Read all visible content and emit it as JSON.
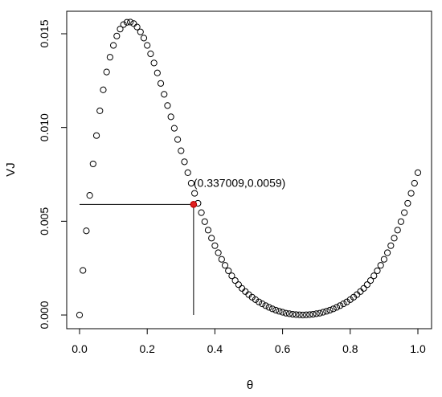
{
  "chart_data": {
    "type": "scatter",
    "title": "",
    "xlabel": "θ",
    "ylabel": "VJ",
    "xlim": [
      0,
      1
    ],
    "ylim": [
      0,
      0.0156
    ],
    "x_ticks": [
      0.0,
      0.2,
      0.4,
      0.6,
      0.8,
      1.0
    ],
    "x_tick_labels": [
      "0.0",
      "0.2",
      "0.4",
      "0.6",
      "0.8",
      "1.0"
    ],
    "y_ticks": [
      0.0,
      0.005,
      0.01,
      0.015
    ],
    "y_tick_labels": [
      "0.000",
      "0.005",
      "0.010",
      "0.015"
    ],
    "grid": false,
    "legend": "none",
    "series": [
      {
        "marker": "open-circle",
        "color": "#000000",
        "x": [
          0.0,
          0.01,
          0.02,
          0.03,
          0.04,
          0.05,
          0.06,
          0.07,
          0.08,
          0.09,
          0.1,
          0.11,
          0.12,
          0.13,
          0.14,
          0.15,
          0.16,
          0.17,
          0.18,
          0.19,
          0.2,
          0.21,
          0.22,
          0.23,
          0.24,
          0.25,
          0.26,
          0.27,
          0.28,
          0.29,
          0.3,
          0.31,
          0.32,
          0.33,
          0.34,
          0.35,
          0.36,
          0.37,
          0.38,
          0.39,
          0.4,
          0.41,
          0.42,
          0.43,
          0.44,
          0.45,
          0.46,
          0.47,
          0.48,
          0.49,
          0.5,
          0.51,
          0.52,
          0.53,
          0.54,
          0.55,
          0.56,
          0.57,
          0.58,
          0.59,
          0.6,
          0.61,
          0.62,
          0.63,
          0.64,
          0.65,
          0.66,
          0.67,
          0.68,
          0.69,
          0.7,
          0.71,
          0.72,
          0.73,
          0.74,
          0.75,
          0.76,
          0.77,
          0.78,
          0.79,
          0.8,
          0.81,
          0.82,
          0.83,
          0.84,
          0.85,
          0.86,
          0.87,
          0.88,
          0.89,
          0.9,
          0.91,
          0.92,
          0.93,
          0.94,
          0.95,
          0.96,
          0.97,
          0.98,
          0.99,
          1.0
        ],
        "y": [
          0.0,
          0.00238,
          0.00449,
          0.00638,
          0.00806,
          0.00957,
          0.01089,
          0.01201,
          0.01296,
          0.01375,
          0.01438,
          0.01488,
          0.01525,
          0.01549,
          0.01561,
          0.01562,
          0.01554,
          0.01536,
          0.0151,
          0.01477,
          0.01438,
          0.01393,
          0.01344,
          0.01291,
          0.01235,
          0.01177,
          0.01117,
          0.01057,
          0.00996,
          0.00936,
          0.00876,
          0.00817,
          0.00759,
          0.00703,
          0.00649,
          0.00596,
          0.00546,
          0.00498,
          0.00453,
          0.0041,
          0.0037,
          0.00332,
          0.00297,
          0.00265,
          0.00236,
          0.00209,
          0.00184,
          0.00162,
          0.00142,
          0.00125,
          0.00109,
          0.00095,
          0.00082,
          0.0007,
          0.0006,
          0.0005,
          0.00041,
          0.00033,
          0.00026,
          0.0002,
          0.00015,
          0.0001,
          7e-05,
          4e-05,
          2e-05,
          1e-05,
          0.0,
          1e-05,
          2e-05,
          4e-05,
          7e-05,
          0.0001,
          0.00015,
          0.0002,
          0.00026,
          0.00033,
          0.00041,
          0.0005,
          0.0006,
          0.0007,
          0.00082,
          0.00095,
          0.00109,
          0.00125,
          0.00142,
          0.00162,
          0.00184,
          0.00209,
          0.00236,
          0.00265,
          0.00297,
          0.00332,
          0.0037,
          0.0041,
          0.00453,
          0.00498,
          0.00546,
          0.00596,
          0.00649,
          0.00703,
          0.00759
        ]
      }
    ],
    "highlight": {
      "x": 0.337009,
      "y": 0.0059,
      "label": "(0.337009,0.0059)",
      "color": "#e02020"
    }
  }
}
